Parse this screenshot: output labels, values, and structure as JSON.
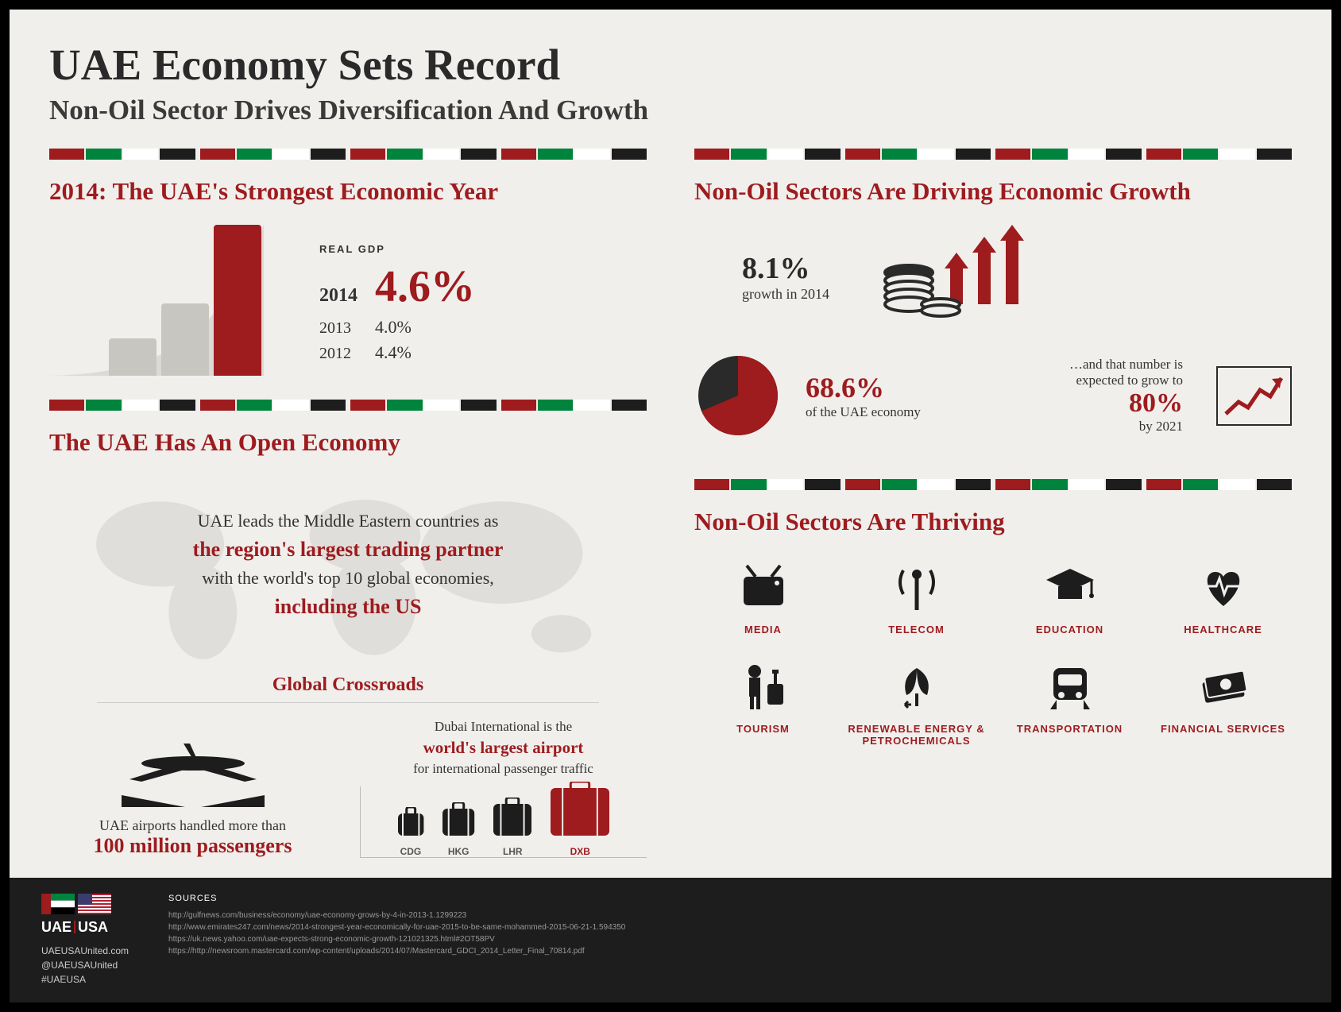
{
  "colors": {
    "red": "#9e1b1e",
    "dark_red": "#7a1518",
    "green": "#00843d",
    "black": "#1d1d1d",
    "white": "#ffffff",
    "bg": "#f0efec",
    "grey_bar": "#c8c6c0",
    "text_dark": "#2a2a2a",
    "map_grey": "#c0beb8"
  },
  "header": {
    "title": "UAE Economy Sets Record",
    "subtitle": "Non-Oil Sector Drives Diversification And Growth"
  },
  "flag_stripe_colors": [
    "#9e1b1e",
    "#00843d",
    "#ffffff",
    "#1d1d1d"
  ],
  "left": {
    "gdp_section": {
      "title": "2014: The UAE's Strongest Economic Year",
      "chart": {
        "type": "bar-with-curve",
        "bars": [
          {
            "height_pct": 25,
            "color": "#c8c6c0",
            "left_pct": 25,
            "width_pct": 20
          },
          {
            "height_pct": 48,
            "color": "#c8c6c0",
            "left_pct": 47,
            "width_pct": 20
          },
          {
            "height_pct": 100,
            "color": "#9e1b1e",
            "left_pct": 69,
            "width_pct": 20
          }
        ],
        "curve_color": "#c8c6c0"
      },
      "label": "REAL GDP",
      "rows": [
        {
          "year": "2014",
          "value": "4.6%",
          "highlight": true
        },
        {
          "year": "2013",
          "value": "4.0%",
          "highlight": false
        },
        {
          "year": "2012",
          "value": "4.4%",
          "highlight": false
        }
      ]
    },
    "open_economy": {
      "title": "The UAE Has An Open Economy",
      "line1": "UAE leads the Middle Eastern countries as",
      "em1": "the region's largest trading partner",
      "line2": "with the world's top 10 global economies,",
      "em2": "including the US"
    },
    "crossroads": {
      "title": "Global Crossroads",
      "passengers_pre": "UAE airports handled more than",
      "passengers_em": "100 million passengers",
      "airport_pre": "Dubai International is the",
      "airport_em": "world's largest airport",
      "airport_post": "for international passenger traffic",
      "suitcases": [
        {
          "code": "CDG",
          "size": 28,
          "color": "#1d1d1d"
        },
        {
          "code": "HKG",
          "size": 34,
          "color": "#1d1d1d"
        },
        {
          "code": "LHR",
          "size": 40,
          "color": "#1d1d1d"
        },
        {
          "code": "DXB",
          "size": 60,
          "color": "#9e1b1e"
        }
      ]
    }
  },
  "right": {
    "driving_section": {
      "title": "Non-Oil Sectors Are Driving Economic Growth",
      "growth_pct": "8.1%",
      "growth_sub": "growth in 2014",
      "pie": {
        "pct": 68.6,
        "fg_color": "#9e1b1e",
        "bg_color": "#2a2a2a",
        "label_pct": "68.6%",
        "label_sub": "of the UAE economy"
      },
      "grow_to_pre": "…and that number is",
      "grow_to_mid": "expected to grow to",
      "grow_to_pct": "80%",
      "grow_to_year": "by 2021"
    },
    "thriving_section": {
      "title": "Non-Oil Sectors Are Thriving",
      "sectors": [
        {
          "name": "MEDIA",
          "icon": "tv"
        },
        {
          "name": "TELECOM",
          "icon": "antenna"
        },
        {
          "name": "EDUCATION",
          "icon": "gradcap"
        },
        {
          "name": "HEALTHCARE",
          "icon": "heart"
        },
        {
          "name": "TOURISM",
          "icon": "tourist"
        },
        {
          "name": "RENEWABLE ENERGY & PETROCHEMICALS",
          "icon": "leaf"
        },
        {
          "name": "TRANSPORTATION",
          "icon": "train"
        },
        {
          "name": "FINANCIAL SERVICES",
          "icon": "money"
        }
      ]
    }
  },
  "footer": {
    "brand_left": "UAE",
    "brand_right": "USA",
    "links": [
      "UAEUSAUnited.com",
      "@UAEUSAUnited",
      "#UAEUSA"
    ],
    "sources_title": "SOURCES",
    "sources": [
      "http://gulfnews.com/business/economy/uae-economy-grows-by-4-in-2013-1.1299223",
      "http://www.emirates247.com/news/2014-strongest-year-economically-for-uae-2015-to-be-same-mohammed-2015-06-21-1.594350",
      "https://uk.news.yahoo.com/uae-expects-strong-economic-growth-121021325.html#2OT58PV",
      "https://http://newsroom.mastercard.com/wp-content/uploads/2014/07/Mastercard_GDCI_2014_Letter_Final_70814.pdf"
    ]
  }
}
